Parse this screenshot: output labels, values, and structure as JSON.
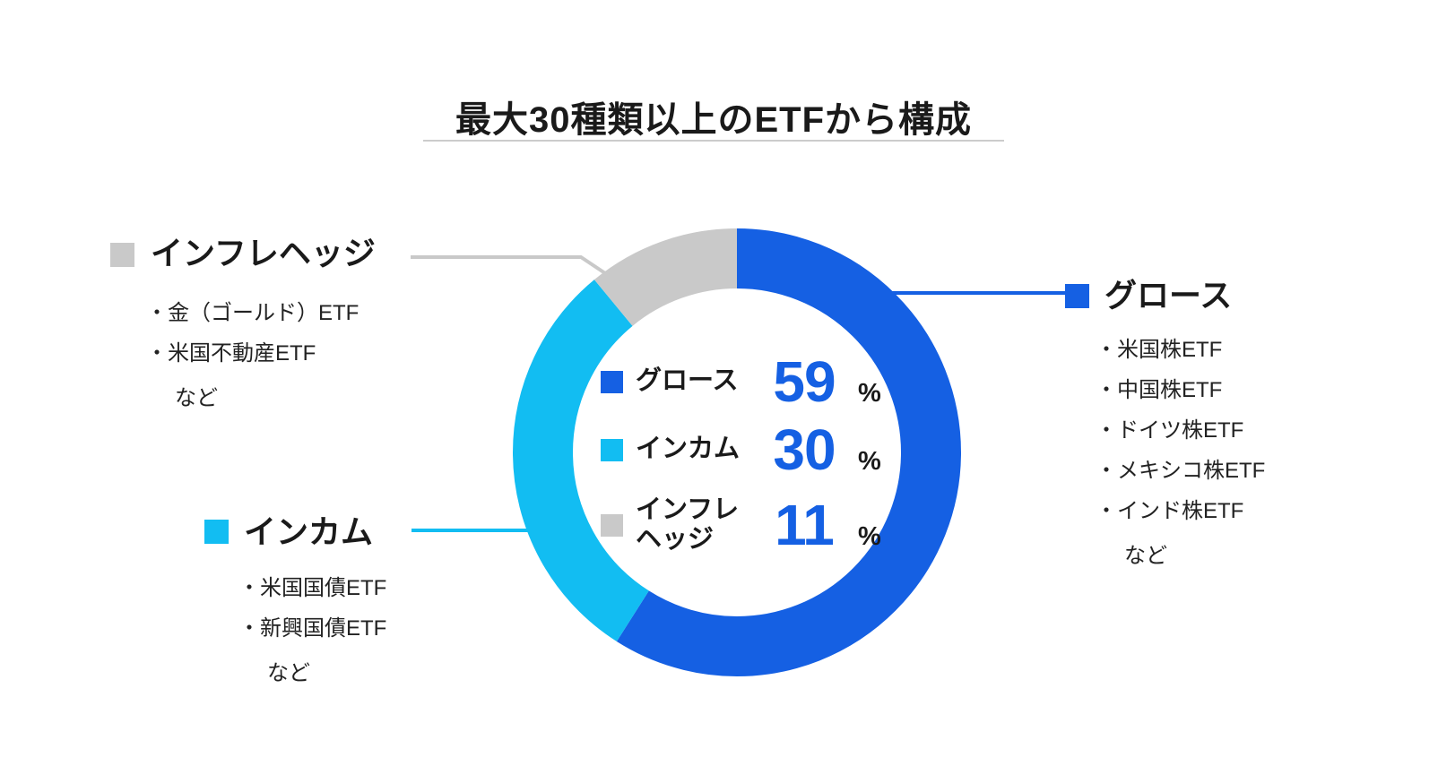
{
  "title": "最大30種類以上のETFから構成",
  "colors": {
    "growth": "#1560e3",
    "income": "#12bdf2",
    "hedge": "#c9c9c9",
    "value_number": "#1560e3",
    "text": "#1a1a1a",
    "divider": "#cccccc"
  },
  "chart_data": {
    "type": "pie",
    "donut": true,
    "title": "最大30種類以上のETFから構成",
    "start_angle": "12-oclock",
    "direction": "clockwise",
    "unit": "%",
    "series": [
      {
        "name": "グロース",
        "value": 59
      },
      {
        "name": "インカム",
        "value": 30
      },
      {
        "name": "インフレヘッジ",
        "value": 11
      }
    ],
    "colors": [
      "#1560e3",
      "#12bdf2",
      "#c9c9c9"
    ]
  },
  "callouts": {
    "growth": {
      "title": "グロース",
      "items": [
        "・米国株ETF",
        "・中国株ETF",
        "・ドイツ株ETF",
        "・メキシコ株ETF",
        "・インド株ETF"
      ],
      "etc": "など"
    },
    "income": {
      "title": "インカム",
      "items": [
        "・米国国債ETF",
        "・新興国債ETF"
      ],
      "etc": "など"
    },
    "hedge": {
      "title": "インフレヘッジ",
      "items": [
        "・金（ゴールド）ETF",
        "・米国不動産ETF"
      ],
      "etc": "など"
    }
  }
}
